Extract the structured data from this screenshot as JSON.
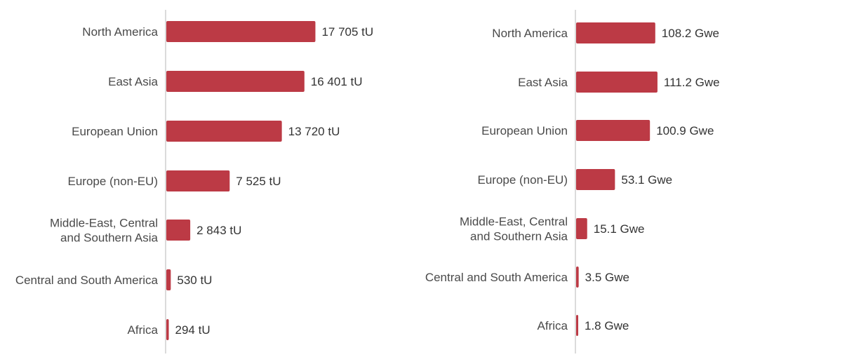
{
  "chart_data": [
    {
      "type": "bar",
      "orientation": "horizontal",
      "categories": [
        "North America",
        "East Asia",
        "European Union",
        "Europe (non-EU)",
        [
          "Middle-East, Central",
          "and Southern Asia"
        ],
        "Central and South America",
        "Africa"
      ],
      "values": [
        17705,
        16401,
        13720,
        7525,
        2843,
        530,
        294
      ],
      "value_labels": [
        "17 705 tU",
        "16 401 tU",
        "13 720 tU",
        "7 525 tU",
        "2 843 tU",
        "530 tU",
        "294 tU"
      ],
      "xlim": [
        0,
        40000
      ],
      "grid": false,
      "bar_color": "#bc3a45",
      "axis_color": "#cfcfcf"
    },
    {
      "type": "bar",
      "orientation": "horizontal",
      "categories": [
        "North America",
        "East Asia",
        "European Union",
        "Europe (non-EU)",
        [
          "Middle-East, Central",
          "and Southern Asia"
        ],
        "Central and South America",
        "Africa"
      ],
      "values": [
        108.2,
        111.2,
        100.9,
        53.1,
        15.1,
        3.5,
        1.8
      ],
      "value_labels": [
        "108.2 Gwe",
        "111.2 Gwe",
        "100.9 Gwe",
        "53.1 Gwe",
        "15.1 Gwe",
        "3.5 Gwe",
        "1.8 Gwe"
      ],
      "xlim": [
        0,
        470
      ],
      "grid": false,
      "bar_color": "#bc3a45",
      "axis_color": "#cfcfcf"
    }
  ]
}
